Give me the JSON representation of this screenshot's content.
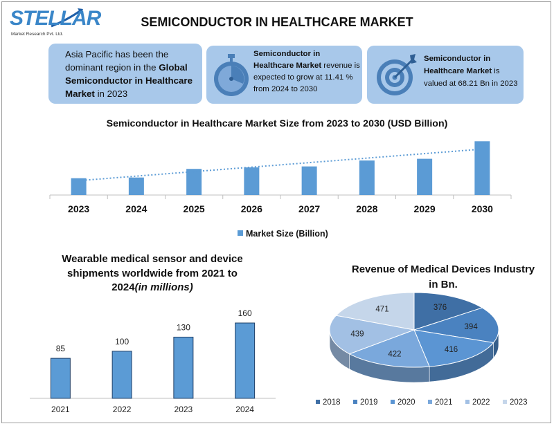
{
  "logo": {
    "word": "STELLAR",
    "sub": "Market Research Pvt. Ltd."
  },
  "title": "SEMICONDUCTOR IN HEALTHCARE MARKET",
  "cards": {
    "card1": {
      "t1": "Asia Pacific has been the dominant region in the ",
      "bold": "Global Semiconductor in Healthcare Market",
      "t2": " in 2023"
    },
    "card2": {
      "bold": "Semiconductor in Healthcare Market",
      "t1": " revenue is expected to grow at 11.41 % from 2024 to 2030",
      "icon": "stopwatch-icon"
    },
    "card3": {
      "bold": "Semiconductor in Healthcare Market",
      "t1": " is valued at 68.21 Bn in 2023",
      "icon": "target-icon"
    }
  },
  "colors": {
    "card": "#a8c8ea",
    "bar": "#5b9bd5",
    "trend": "#5b9bd5"
  },
  "chart_data": [
    {
      "type": "bar",
      "title": "Semiconductor in Healthcare Market Size from 2023 to 2030 (USD Billion)",
      "categories": [
        "2023",
        "2024",
        "2025",
        "2026",
        "2027",
        "2028",
        "2029",
        "2030"
      ],
      "series": [
        {
          "name": "Market Size (Billion)",
          "values": [
            68.21,
            71,
            106,
            112,
            116,
            140,
            147,
            218
          ]
        }
      ],
      "trendline": "linear, dotted",
      "ylim": [
        0,
        230
      ],
      "legend": "bottom",
      "grid": false
    },
    {
      "type": "bar",
      "title_l1": "Wearable medical sensor and device",
      "title_l2": "shipments worldwide from 2021 to",
      "title_l3a": "2024",
      "title_l3b": "(in millions)",
      "categories": [
        "2021",
        "2022",
        "2023",
        "2024"
      ],
      "values": [
        85,
        100,
        130,
        160
      ],
      "ylim": [
        0,
        185
      ],
      "grid": false
    },
    {
      "type": "pie",
      "title_l1": "Revenue of Medical Devices Industry",
      "title_l2": "in Bn.",
      "labels": [
        "2018",
        "2019",
        "2020",
        "2021",
        "2022",
        "2023"
      ],
      "values": [
        376,
        394,
        416,
        422,
        439,
        471
      ],
      "colors": [
        "#3f6fa5",
        "#4a82c0",
        "#5b95d3",
        "#7aa8dc",
        "#a2c0e4",
        "#c5d6ea"
      ],
      "style": "3d",
      "legend": "bottom"
    }
  ]
}
